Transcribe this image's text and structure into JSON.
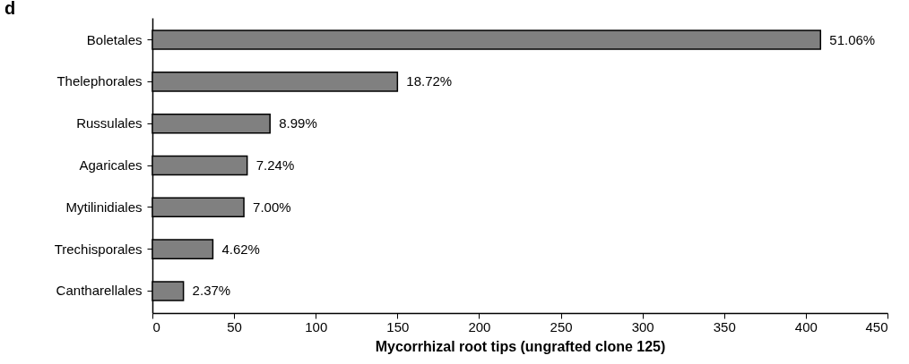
{
  "chart_data": {
    "type": "bar",
    "orientation": "horizontal",
    "title": "d",
    "xlabel": "Mycorrhizal root tips  (ungrafted clone 125)",
    "categories": [
      "Boletales",
      "Thelephorales",
      "Russulales",
      "Agaricales",
      "Mytilinidiales",
      "Trechisporales",
      "Cantharellales"
    ],
    "values": [
      409,
      150,
      72,
      58,
      56,
      37,
      19
    ],
    "annotations": [
      {
        "text": "51.06%",
        "x": 409,
        "y": "Boletales"
      },
      {
        "text": "18.72%",
        "x": 150,
        "y": "Thelephorales"
      },
      {
        "text": "8.99%",
        "x": 72,
        "y": "Russulales"
      },
      {
        "text": "7.24%",
        "x": 58,
        "y": "Agaricales"
      },
      {
        "text": "7.00%",
        "x": 56,
        "y": "Mytilinidiales"
      },
      {
        "text": "4.62%",
        "x": 37,
        "y": "Trechisporales"
      },
      {
        "text": "2.37%",
        "x": 19,
        "y": "Cantharellales"
      }
    ],
    "color": "#808080",
    "xlim": [
      0,
      450
    ],
    "xticks": [
      0,
      50,
      100,
      150,
      200,
      250,
      300,
      350,
      400,
      450
    ],
    "grid": false
  }
}
